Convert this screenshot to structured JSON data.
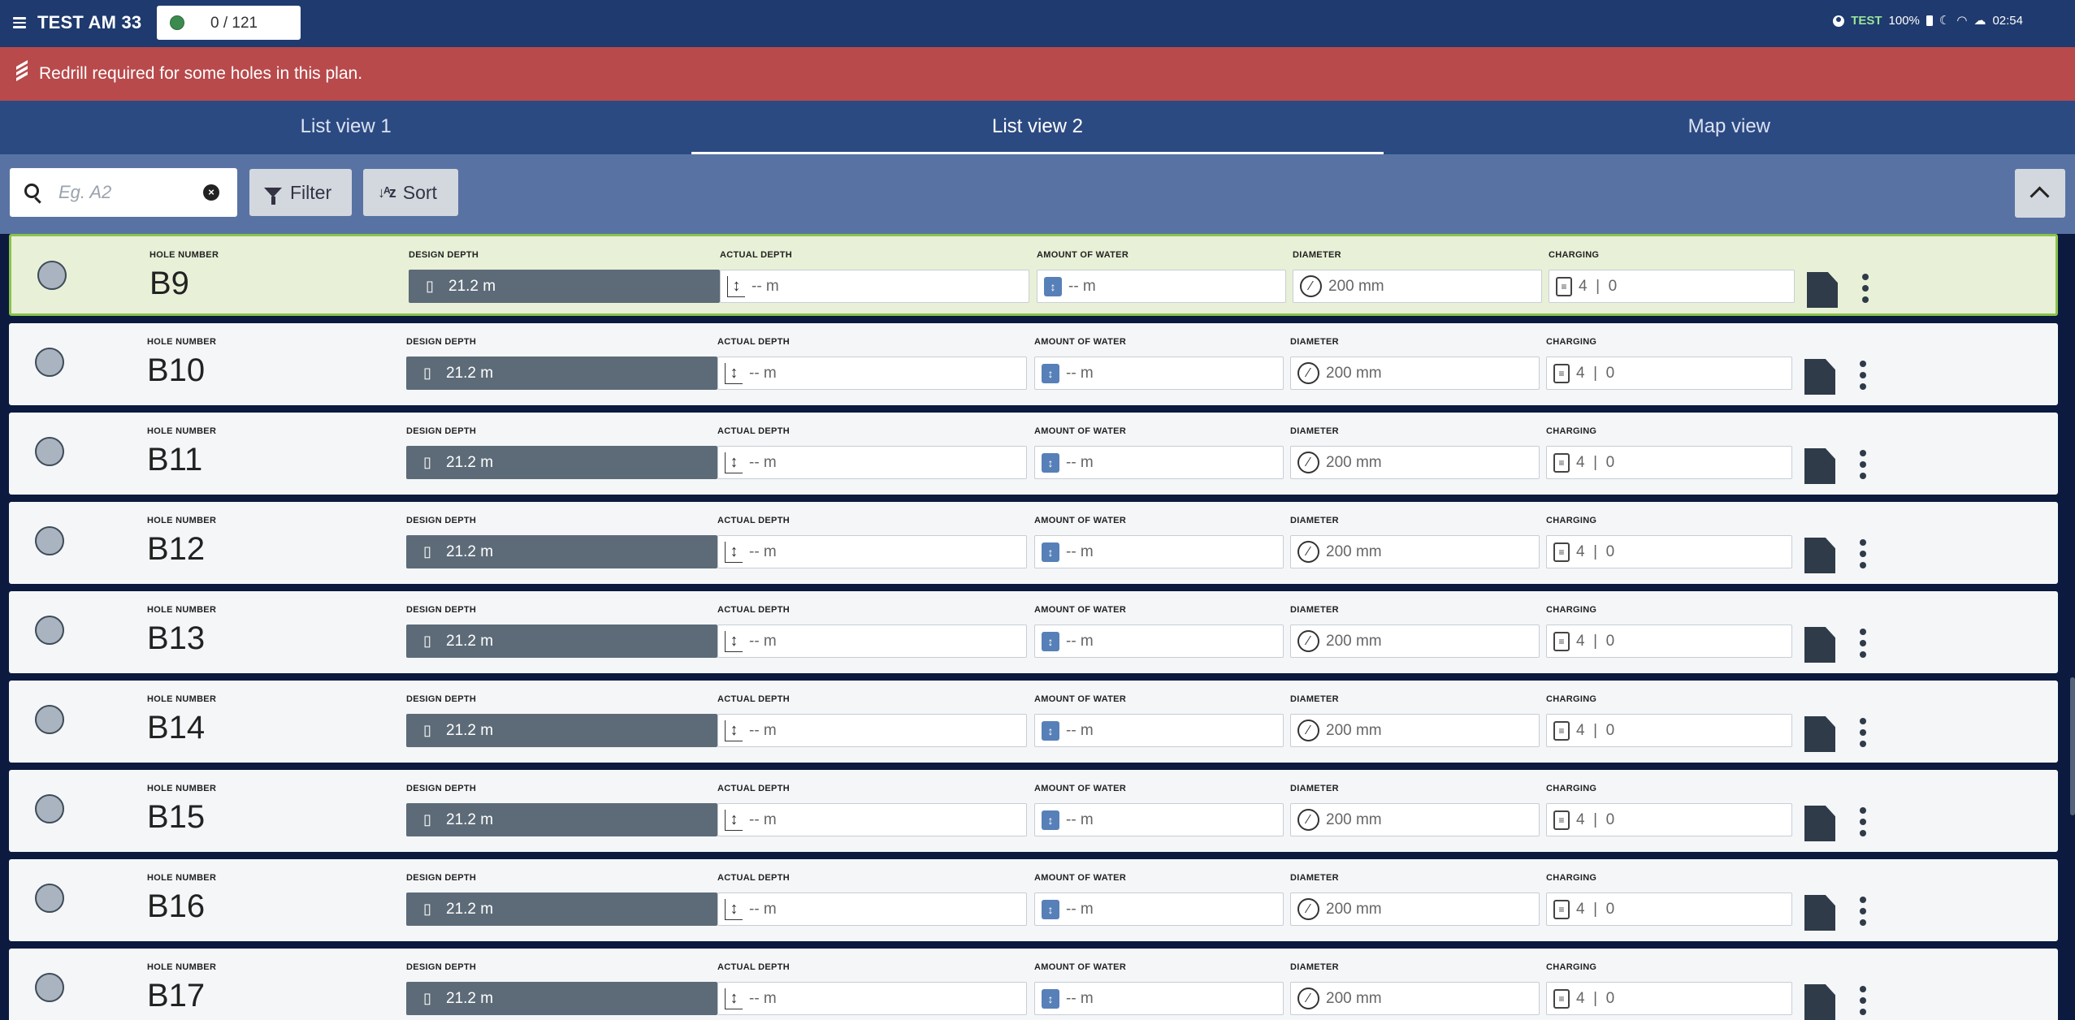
{
  "header": {
    "title": "TEST AM 33",
    "progress": "0 / 121",
    "env": "TEST",
    "battery": "100%",
    "time": "02:54"
  },
  "alert": {
    "message": "Redrill required for some holes in this plan."
  },
  "tabs": [
    {
      "label": "List view 1",
      "active": false
    },
    {
      "label": "List view 2",
      "active": true
    },
    {
      "label": "Map view",
      "active": false
    }
  ],
  "toolbar": {
    "search_placeholder": "Eg. A2",
    "filter_label": "Filter",
    "sort_label": "Sort"
  },
  "labels": {
    "hole_number": "HOLE NUMBER",
    "design_depth": "DESIGN DEPTH",
    "actual_depth": "ACTUAL DEPTH",
    "amount_of_water": "AMOUNT OF WATER",
    "diameter": "DIAMETER",
    "charging": "CHARGING"
  },
  "holes": [
    {
      "number": "B9",
      "design_depth": "21.2 m",
      "actual_depth": "-- m",
      "water": "-- m",
      "diameter": "200 mm",
      "charging": "4  |  0",
      "selected": true
    },
    {
      "number": "B10",
      "design_depth": "21.2 m",
      "actual_depth": "-- m",
      "water": "-- m",
      "diameter": "200 mm",
      "charging": "4  |  0",
      "selected": false
    },
    {
      "number": "B11",
      "design_depth": "21.2 m",
      "actual_depth": "-- m",
      "water": "-- m",
      "diameter": "200 mm",
      "charging": "4  |  0",
      "selected": false
    },
    {
      "number": "B12",
      "design_depth": "21.2 m",
      "actual_depth": "-- m",
      "water": "-- m",
      "diameter": "200 mm",
      "charging": "4  |  0",
      "selected": false
    },
    {
      "number": "B13",
      "design_depth": "21.2 m",
      "actual_depth": "-- m",
      "water": "-- m",
      "diameter": "200 mm",
      "charging": "4  |  0",
      "selected": false
    },
    {
      "number": "B14",
      "design_depth": "21.2 m",
      "actual_depth": "-- m",
      "water": "-- m",
      "diameter": "200 mm",
      "charging": "4  |  0",
      "selected": false
    },
    {
      "number": "B15",
      "design_depth": "21.2 m",
      "actual_depth": "-- m",
      "water": "-- m",
      "diameter": "200 mm",
      "charging": "4  |  0",
      "selected": false
    },
    {
      "number": "B16",
      "design_depth": "21.2 m",
      "actual_depth": "-- m",
      "water": "-- m",
      "diameter": "200 mm",
      "charging": "4  |  0",
      "selected": false
    },
    {
      "number": "B17",
      "design_depth": "21.2 m",
      "actual_depth": "-- m",
      "water": "-- m",
      "diameter": "200 mm",
      "charging": "4  |  0",
      "selected": false
    }
  ],
  "colors": {
    "header": "#1f3a6e",
    "alert": "#b84a4b",
    "selected_row": "#e8f0d7",
    "design_box": "#5d6b78"
  }
}
